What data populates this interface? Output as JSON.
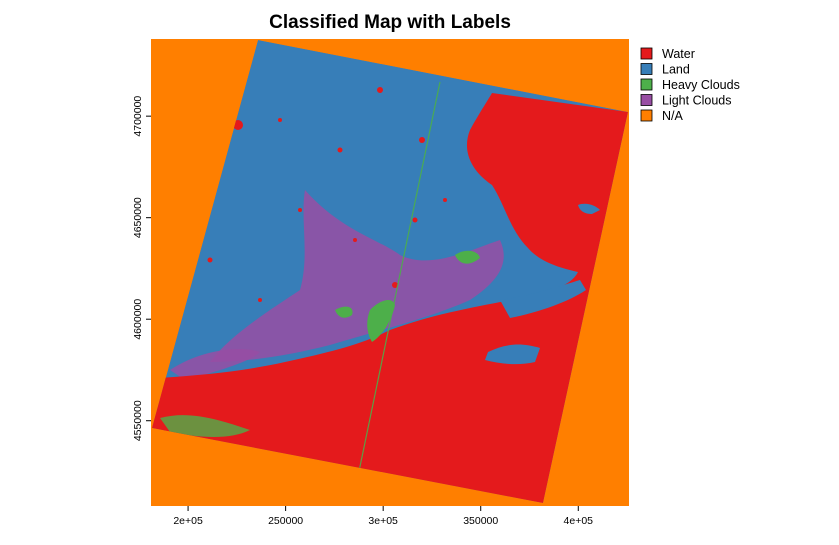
{
  "title": "Classified Map with Labels",
  "legend": [
    {
      "label": "Water",
      "color": "#E41A1C"
    },
    {
      "label": "Land",
      "color": "#377EB8"
    },
    {
      "label": "Heavy Clouds",
      "color": "#4DAF4A"
    },
    {
      "label": "Light Clouds",
      "color": "#984EA3"
    },
    {
      "label": "N/A",
      "color": "#FF7F00"
    }
  ],
  "x_ticks": [
    "2e+05",
    "250000",
    "3e+05",
    "350000",
    "4e+05"
  ],
  "y_ticks": [
    "4550000",
    "4600000",
    "4650000",
    "4700000"
  ],
  "map_data": {
    "type": "raster-classification",
    "x_tick_values": [
      200000,
      250000,
      300000,
      350000,
      400000
    ],
    "y_tick_values": [
      4550000,
      4600000,
      4650000,
      4700000
    ],
    "xlim": [
      181000,
      426000
    ],
    "ylim": [
      4508000,
      4738000
    ],
    "background_class": "N/A",
    "legend_position": "top-right"
  }
}
